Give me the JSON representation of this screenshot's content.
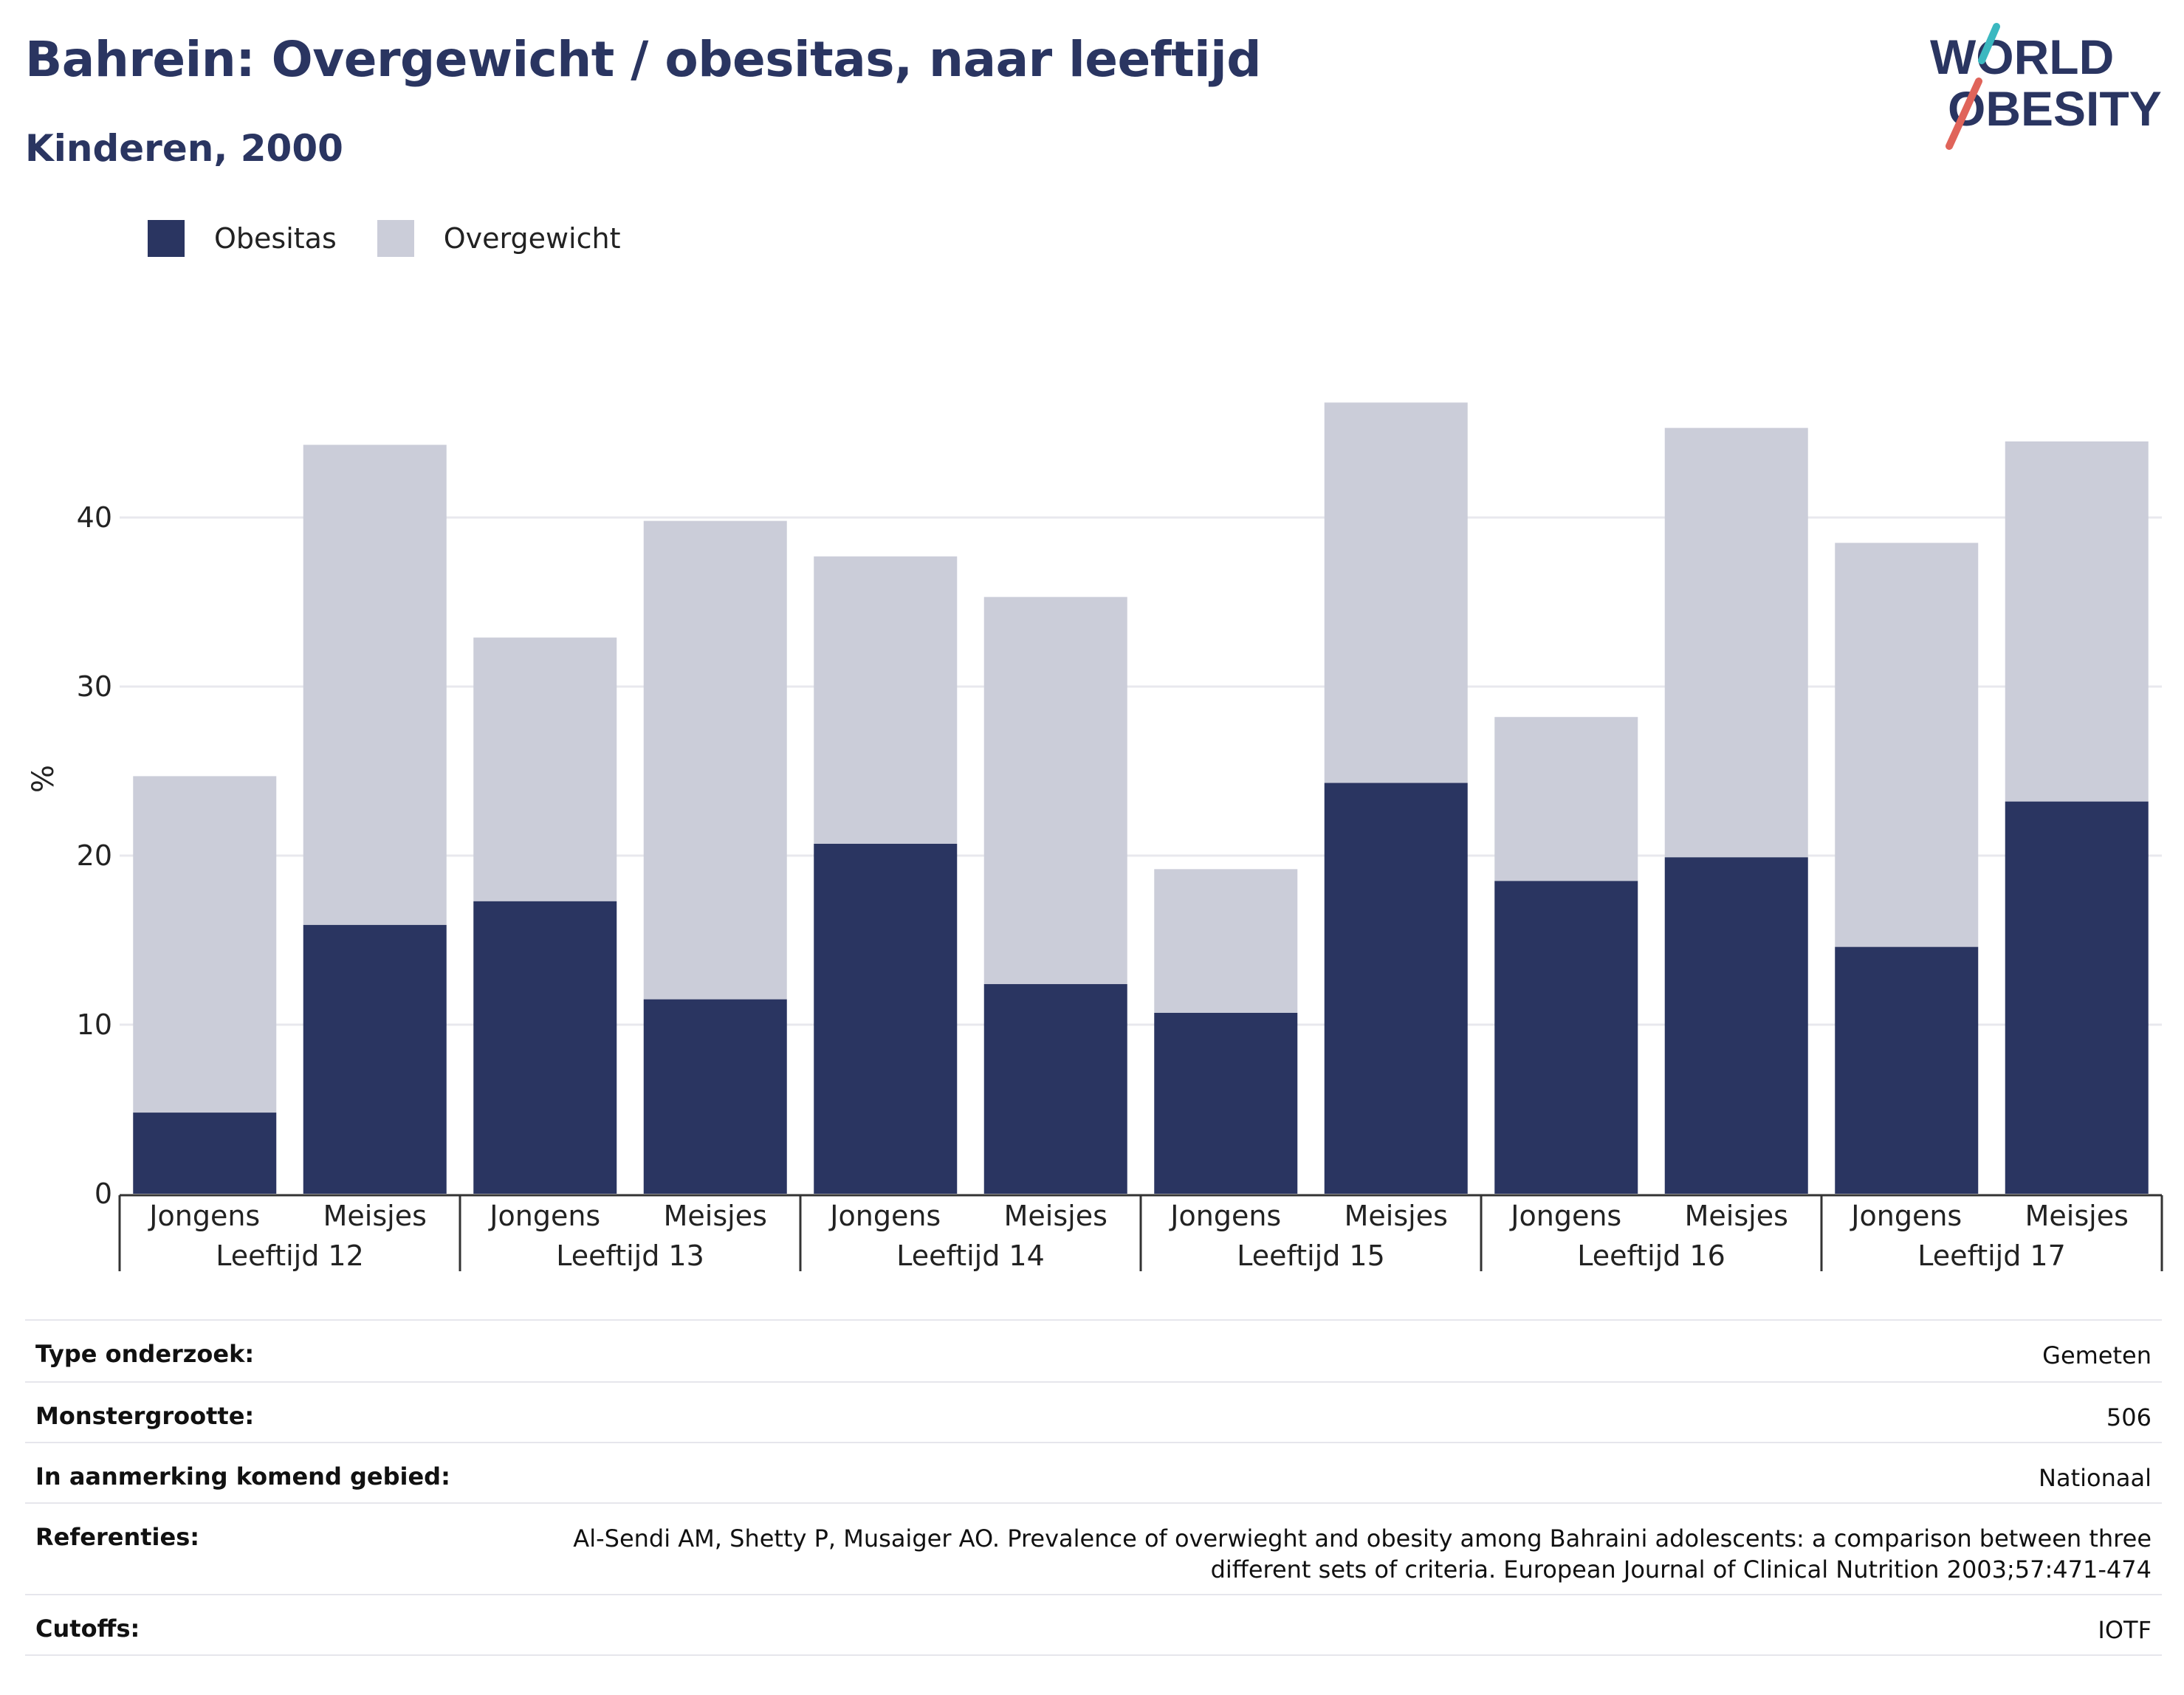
{
  "header": {
    "title": "Bahrein: Overgewicht / obesitas, naar leeftijd",
    "subtitle": "Kinderen, 2000"
  },
  "logo": {
    "line1": "WORLD",
    "line2": "OBESITY"
  },
  "legend": {
    "obesity_label": "Obesitas",
    "overweight_label": "Overgewicht"
  },
  "colors": {
    "obesity": "#2a3561",
    "overweight": "#cbcdd9",
    "grid": "#e8e8ee",
    "logo_teal": "#3bb8c0",
    "logo_red": "#e0645a"
  },
  "chart_data": {
    "type": "bar",
    "stacked": true,
    "ylabel": "%",
    "ylim": [
      0,
      48
    ],
    "yticks": [
      0,
      10,
      20,
      30,
      40
    ],
    "groups": [
      "Leeftijd 12",
      "Leeftijd 13",
      "Leeftijd 14",
      "Leeftijd 15",
      "Leeftijd 16",
      "Leeftijd 17"
    ],
    "subcategories": [
      "Jongens",
      "Meisjes"
    ],
    "series": [
      {
        "name": "Obesitas",
        "values": [
          4.8,
          15.9,
          17.3,
          11.5,
          20.7,
          12.4,
          10.7,
          24.3,
          18.5,
          19.9,
          14.6,
          23.2
        ]
      },
      {
        "name": "Overgewicht",
        "values": [
          19.9,
          28.4,
          15.6,
          28.3,
          17.0,
          22.9,
          8.5,
          22.5,
          9.7,
          25.4,
          23.9,
          21.3
        ]
      }
    ],
    "grid": true,
    "legend_position": "top-left"
  },
  "meta": [
    {
      "key": "Type onderzoek:",
      "value": "Gemeten"
    },
    {
      "key": "Monstergrootte:",
      "value": "506"
    },
    {
      "key": "In aanmerking komend gebied:",
      "value": "Nationaal"
    },
    {
      "key": "Referenties:",
      "value": "Al-Sendi AM, Shetty P, Musaiger AO. Prevalence of overwieght and obesity among Bahraini adolescents: a comparison between three different sets of criteria. European Journal of Clinical Nutrition 2003;57:471-474"
    },
    {
      "key": "Cutoffs:",
      "value": "IOTF"
    }
  ]
}
